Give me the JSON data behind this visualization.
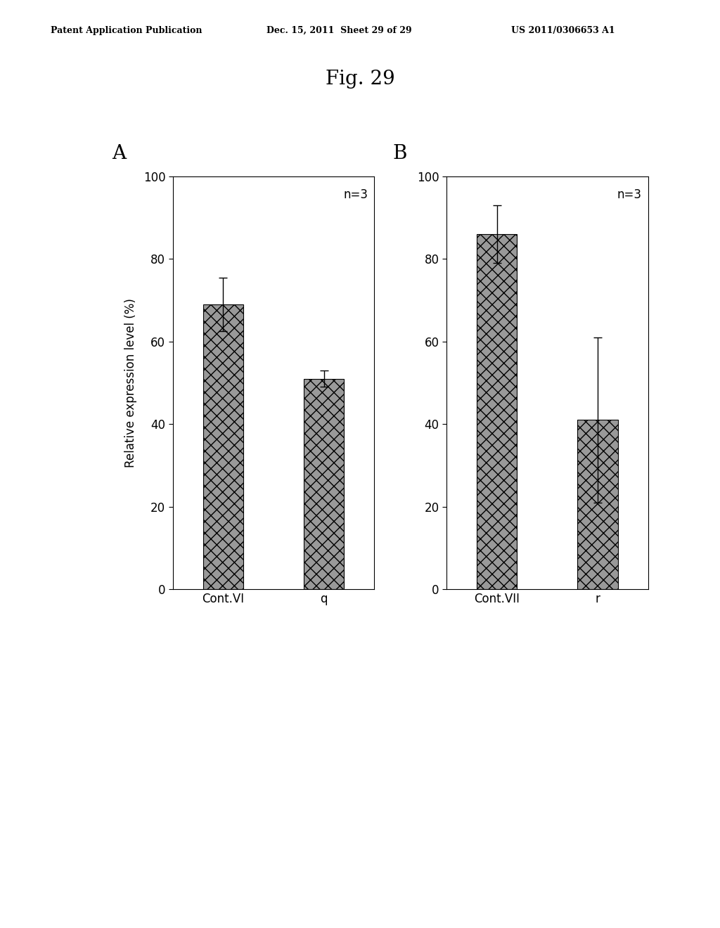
{
  "fig_title": "Fig. 29",
  "header_left": "Patent Application Publication",
  "header_mid": "Dec. 15, 2011  Sheet 29 of 29",
  "header_right": "US 2011/0306653 A1",
  "panel_A": {
    "label": "A",
    "bars": [
      {
        "x_label": "Cont.VI",
        "value": 69,
        "error": 6.5
      },
      {
        "x_label": "q",
        "value": 51,
        "error": 2.0
      }
    ],
    "annotation": "n=3",
    "ylabel": "Relative expression level (%)",
    "ylim": [
      0,
      100
    ],
    "yticks": [
      0,
      20,
      40,
      60,
      80,
      100
    ]
  },
  "panel_B": {
    "label": "B",
    "bars": [
      {
        "x_label": "Cont.VII",
        "value": 86,
        "error": 7.0
      },
      {
        "x_label": "r",
        "value": 41,
        "error": 20.0
      }
    ],
    "annotation": "n=3",
    "ylim": [
      0,
      100
    ],
    "yticks": [
      0,
      20,
      40,
      60,
      80,
      100
    ]
  },
  "bar_color": "#999999",
  "bar_edgecolor": "#000000",
  "bar_width": 0.4,
  "background_color": "#ffffff",
  "fig_bg_color": "#ffffff",
  "header_fontsize": 9,
  "title_fontsize": 20,
  "panel_label_fontsize": 20,
  "axis_label_fontsize": 12,
  "tick_fontsize": 12,
  "annot_fontsize": 12
}
